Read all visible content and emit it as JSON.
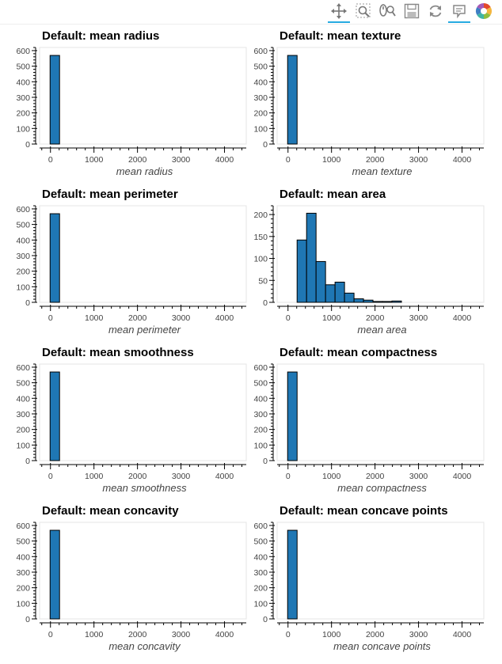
{
  "toolbar": {
    "tools": [
      {
        "name": "pan-tool",
        "icon": "pan-icon",
        "active": true
      },
      {
        "name": "box-zoom-tool",
        "icon": "box-zoom-icon",
        "active": false
      },
      {
        "name": "wheel-zoom-tool",
        "icon": "wheel-zoom-icon",
        "active": false
      },
      {
        "name": "save-tool",
        "icon": "save-icon",
        "active": false
      },
      {
        "name": "reset-tool",
        "icon": "reset-icon",
        "active": false
      },
      {
        "name": "hover-tool",
        "icon": "hover-icon",
        "active": true
      },
      {
        "name": "bokeh-logo",
        "icon": "bokeh-logo-icon",
        "active": false
      }
    ]
  },
  "colors": {
    "bar_fill": "#1f77b4",
    "bar_stroke": "#000000",
    "axis": "#000000",
    "frame": "#e5e5e5",
    "accent": "#26aae1"
  },
  "chart_data": [
    {
      "type": "bar",
      "title": "Default: mean radius",
      "xlabel": "mean radius",
      "ylabel": "",
      "xlim": [
        -250,
        4500
      ],
      "ylim": [
        0,
        620
      ],
      "x_ticks": [
        0,
        1000,
        2000,
        3000,
        4000
      ],
      "y_ticks": [
        0,
        100,
        200,
        300,
        400,
        500,
        600
      ],
      "bin_width": 218,
      "bins": [
        {
          "x0": -9,
          "x1": 209,
          "count": 569
        }
      ]
    },
    {
      "type": "bar",
      "title": "Default: mean texture",
      "xlabel": "mean texture",
      "ylabel": "",
      "xlim": [
        -250,
        4500
      ],
      "ylim": [
        0,
        620
      ],
      "x_ticks": [
        0,
        1000,
        2000,
        3000,
        4000
      ],
      "y_ticks": [
        0,
        100,
        200,
        300,
        400,
        500,
        600
      ],
      "bin_width": 218,
      "bins": [
        {
          "x0": -9,
          "x1": 209,
          "count": 569
        }
      ]
    },
    {
      "type": "bar",
      "title": "Default: mean perimeter",
      "xlabel": "mean perimeter",
      "ylabel": "",
      "xlim": [
        -250,
        4500
      ],
      "ylim": [
        0,
        620
      ],
      "x_ticks": [
        0,
        1000,
        2000,
        3000,
        4000
      ],
      "y_ticks": [
        0,
        100,
        200,
        300,
        400,
        500,
        600
      ],
      "bin_width": 218,
      "bins": [
        {
          "x0": -9,
          "x1": 209,
          "count": 569
        }
      ]
    },
    {
      "type": "bar",
      "title": "Default: mean area",
      "xlabel": "mean area",
      "ylabel": "",
      "xlim": [
        -250,
        4500
      ],
      "ylim": [
        0,
        220
      ],
      "x_ticks": [
        0,
        1000,
        2000,
        3000,
        4000
      ],
      "y_ticks": [
        0,
        50,
        100,
        150,
        200
      ],
      "bin_width": 218,
      "bins": [
        {
          "x0": -9,
          "x1": 209,
          "count": 0
        },
        {
          "x0": 209,
          "x1": 427,
          "count": 142
        },
        {
          "x0": 427,
          "x1": 645,
          "count": 203
        },
        {
          "x0": 645,
          "x1": 863,
          "count": 93
        },
        {
          "x0": 863,
          "x1": 1081,
          "count": 40
        },
        {
          "x0": 1081,
          "x1": 1299,
          "count": 46
        },
        {
          "x0": 1299,
          "x1": 1517,
          "count": 21
        },
        {
          "x0": 1517,
          "x1": 1735,
          "count": 8
        },
        {
          "x0": 1735,
          "x1": 1953,
          "count": 5
        },
        {
          "x0": 1953,
          "x1": 2171,
          "count": 2
        },
        {
          "x0": 2171,
          "x1": 2389,
          "count": 2
        },
        {
          "x0": 2389,
          "x1": 2607,
          "count": 3
        },
        {
          "x0": 2607,
          "x1": 2825,
          "count": 0
        },
        {
          "x0": 2825,
          "x1": 3043,
          "count": 0
        },
        {
          "x0": 3043,
          "x1": 3261,
          "count": 0
        },
        {
          "x0": 3261,
          "x1": 3479,
          "count": 0
        },
        {
          "x0": 3479,
          "x1": 3697,
          "count": 0
        },
        {
          "x0": 3697,
          "x1": 3915,
          "count": 0
        },
        {
          "x0": 3915,
          "x1": 4133,
          "count": 0
        },
        {
          "x0": 4133,
          "x1": 4351,
          "count": 0
        }
      ]
    },
    {
      "type": "bar",
      "title": "Default: mean smoothness",
      "xlabel": "mean smoothness",
      "ylabel": "",
      "xlim": [
        -250,
        4500
      ],
      "ylim": [
        0,
        620
      ],
      "x_ticks": [
        0,
        1000,
        2000,
        3000,
        4000
      ],
      "y_ticks": [
        0,
        100,
        200,
        300,
        400,
        500,
        600
      ],
      "bin_width": 218,
      "bins": [
        {
          "x0": -9,
          "x1": 209,
          "count": 569
        }
      ]
    },
    {
      "type": "bar",
      "title": "Default: mean compactness",
      "xlabel": "mean compactness",
      "ylabel": "",
      "xlim": [
        -250,
        4500
      ],
      "ylim": [
        0,
        620
      ],
      "x_ticks": [
        0,
        1000,
        2000,
        3000,
        4000
      ],
      "y_ticks": [
        0,
        100,
        200,
        300,
        400,
        500,
        600
      ],
      "bin_width": 218,
      "bins": [
        {
          "x0": -9,
          "x1": 209,
          "count": 569
        }
      ]
    },
    {
      "type": "bar",
      "title": "Default: mean concavity",
      "xlabel": "mean concavity",
      "ylabel": "",
      "xlim": [
        -250,
        4500
      ],
      "ylim": [
        0,
        620
      ],
      "x_ticks": [
        0,
        1000,
        2000,
        3000,
        4000
      ],
      "y_ticks": [
        0,
        100,
        200,
        300,
        400,
        500,
        600
      ],
      "bin_width": 218,
      "bins": [
        {
          "x0": -9,
          "x1": 209,
          "count": 569
        }
      ]
    },
    {
      "type": "bar",
      "title": "Default: mean concave points",
      "xlabel": "mean concave points",
      "ylabel": "",
      "xlim": [
        -250,
        4500
      ],
      "ylim": [
        0,
        620
      ],
      "x_ticks": [
        0,
        1000,
        2000,
        3000,
        4000
      ],
      "y_ticks": [
        0,
        100,
        200,
        300,
        400,
        500,
        600
      ],
      "bin_width": 218,
      "bins": [
        {
          "x0": -9,
          "x1": 209,
          "count": 569
        }
      ]
    }
  ]
}
